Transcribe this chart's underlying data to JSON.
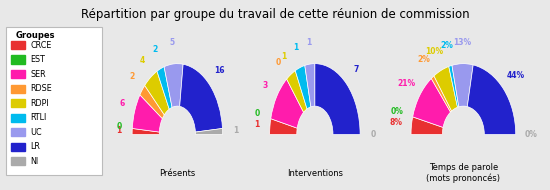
{
  "title": "Répartition par groupe du travail de cette réunion de commission",
  "background_color": "#e8e8e8",
  "groups": [
    "CRCE",
    "EST",
    "SER",
    "RDSE",
    "RDPI",
    "RTLI",
    "UC",
    "LR",
    "NI"
  ],
  "colors": [
    "#e83030",
    "#22bb22",
    "#ff1cac",
    "#ff9933",
    "#ddcc00",
    "#00bbee",
    "#9999ee",
    "#2222cc",
    "#aaaaaa"
  ],
  "legend_title": "Groupes",
  "charts": [
    {
      "title": "Présents",
      "values": [
        1,
        0,
        6,
        2,
        4,
        2,
        5,
        16,
        1
      ],
      "labels": [
        "1",
        "0",
        "6",
        "2",
        "4",
        "2",
        "5",
        "16",
        "1"
      ]
    },
    {
      "title": "Interventions",
      "values": [
        1,
        0,
        3,
        0,
        1,
        1,
        1,
        7,
        0
      ],
      "labels": [
        "1",
        "0",
        "3",
        "0",
        "1",
        "1",
        "1",
        "7",
        "0"
      ]
    },
    {
      "title": "Temps de parole\n(mots prononcés)",
      "values": [
        8,
        0,
        21,
        2,
        10,
        2,
        13,
        44,
        0
      ],
      "labels": [
        "8%",
        "0%",
        "21%",
        "2%",
        "10%",
        "2%",
        "13%",
        "44%",
        "0%"
      ]
    }
  ]
}
